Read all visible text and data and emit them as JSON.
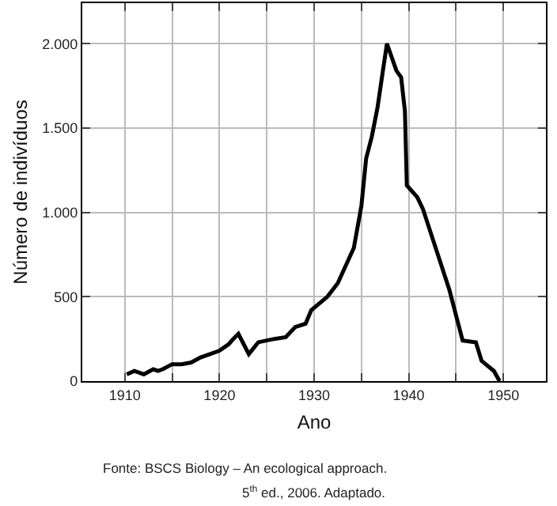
{
  "chart_data": {
    "type": "line",
    "xlabel": "Ano",
    "ylabel": "Número de indivíduos",
    "annotations": [
      "Fonte: BSCS Biology – An ecological approach.",
      "5$^{th}$ ed., 2006. Adaptado."
    ],
    "xlim": [
      1905.5,
      1954.5
    ],
    "ylim": [
      0,
      2240
    ],
    "xticks": [
      1910,
      {
        "value": 1915,
        "label": null
      },
      1920,
      {
        "value": 1925,
        "label": null
      },
      1930,
      {
        "value": 1935,
        "label": null
      },
      1940,
      {
        "value": 1945,
        "label": null
      },
      1950
    ],
    "yticks": [
      0,
      500,
      {
        "value": 1000,
        "label": "1.000"
      },
      {
        "value": 1500,
        "label": "1.500"
      },
      {
        "value": 2000,
        "label": "2.000"
      }
    ],
    "grid": true,
    "marker": "none",
    "line_style": "solid",
    "series": [
      {
        "color": "#000000",
        "x": [
          1910.2,
          1911,
          1912,
          1913,
          1913.5,
          1914,
          1915,
          1916,
          1917,
          1918,
          1919,
          1920,
          1921,
          1921.3,
          1922,
          1923.1,
          1924.1,
          1925.8,
          1927,
          1928,
          1929.1,
          1929.7,
          1931.4,
          1932.5,
          1934.2,
          1935,
          1935.5,
          1936.1,
          1936.7,
          1937.3,
          1937.7,
          1938.7,
          1939.2,
          1939.6,
          1939.8,
          1940.9,
          1941.5,
          1944.3,
          1945.7,
          1947.1,
          1947.7,
          1949,
          1949.6
        ],
        "values": [
          40,
          60,
          40,
          70,
          60,
          70,
          100,
          100,
          110,
          140,
          160,
          180,
          220,
          240,
          280,
          160,
          230,
          250,
          260,
          320,
          340,
          420,
          500,
          580,
          790,
          1040,
          1320,
          1450,
          1620,
          1850,
          2000,
          1840,
          1800,
          1600,
          1160,
          1090,
          1020,
          540,
          240,
          230,
          120,
          60,
          0
        ]
      }
    ]
  }
}
